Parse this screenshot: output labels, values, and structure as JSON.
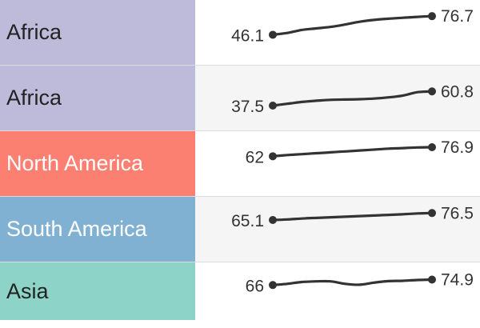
{
  "chart_data": {
    "type": "line",
    "rows": [
      {
        "label": "Africa",
        "color": "#bebada",
        "label_color": "#222222",
        "values": [
          46.1,
          49.0,
          54.0,
          56.5,
          59.0,
          63.0,
          67.5,
          70.5,
          72.5,
          74.0,
          75.5,
          76.7
        ]
      },
      {
        "label": "Africa",
        "color": "#bebada",
        "label_color": "#222222",
        "values": [
          37.5,
          40.5,
          43.5,
          45.5,
          47.0,
          47.5,
          48.0,
          49.0,
          51.0,
          54.0,
          59.5,
          60.8
        ]
      },
      {
        "label": "North America",
        "color": "#fb8072",
        "label_color": "#ffffff",
        "values": [
          62.0,
          64.0,
          65.5,
          67.0,
          68.5,
          70.0,
          71.5,
          73.0,
          74.5,
          75.5,
          76.5,
          76.9
        ]
      },
      {
        "label": "South America",
        "color": "#80b1d3",
        "label_color": "#ffffff",
        "values": [
          65.1,
          66.0,
          67.5,
          68.5,
          69.5,
          70.5,
          71.5,
          72.5,
          73.5,
          74.5,
          75.8,
          76.5
        ]
      },
      {
        "label": "Asia",
        "color": "#8dd3c7",
        "label_color": "#222222",
        "values": [
          66.0,
          68.0,
          71.0,
          72.0,
          72.0,
          68.0,
          66.5,
          70.0,
          72.5,
          73.0,
          74.3,
          74.9
        ]
      }
    ],
    "first_labels": [
      "46.1",
      "37.5",
      "62",
      "65.1",
      "66"
    ],
    "last_labels": [
      "76.7",
      "60.8",
      "76.9",
      "76.5",
      "74.9"
    ],
    "line_color": "#333333"
  }
}
